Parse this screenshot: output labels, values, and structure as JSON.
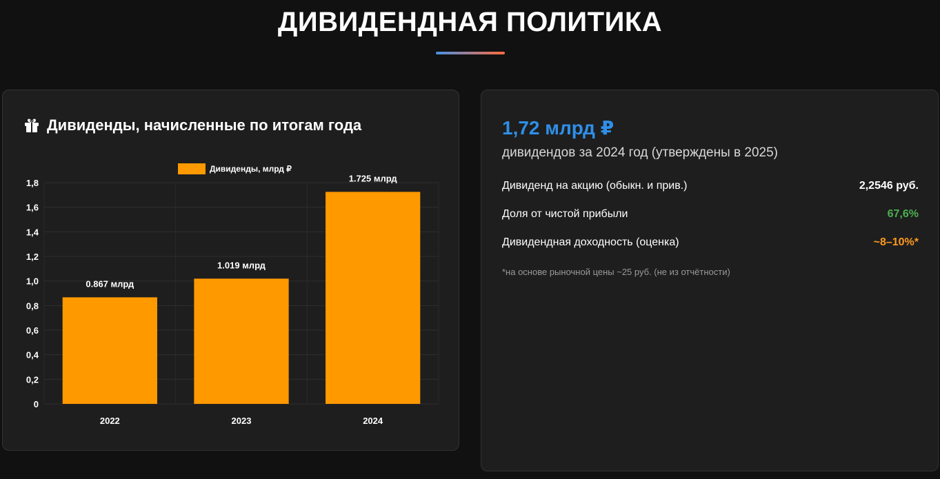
{
  "header": {
    "title": "ДИВИДЕНДНАЯ ПОЛИТИКА"
  },
  "chart_card": {
    "title": "Дивиденды, начисленные по итогам года",
    "icon": "gift-icon"
  },
  "chart_data": {
    "type": "bar",
    "categories": [
      "2022",
      "2023",
      "2024"
    ],
    "series": [
      {
        "name": "Дивиденды, млрд ₽",
        "values": [
          0.867,
          1.019,
          1.725
        ],
        "data_labels": [
          "0.867 млрд",
          "1.019 млрд",
          "1.725 млрд"
        ],
        "color": "#ff9900"
      }
    ],
    "ylim": [
      0,
      1.8
    ],
    "yticks": [
      "0",
      "0,2",
      "0,4",
      "0,6",
      "0,8",
      "1,0",
      "1,2",
      "1,4",
      "1,6",
      "1,8"
    ],
    "grid": true,
    "legend": "top-center"
  },
  "stats_card": {
    "total": "1,72 млрд ₽",
    "subtitle": "дивидендов за 2024 год (утверждены в 2025)",
    "rows": [
      {
        "label": "Дивиденд на акцию (обыкн. и прив.)",
        "value": "2,2546 руб.",
        "color": "#ffffff"
      },
      {
        "label": "Доля от чистой прибыли",
        "value": "67,6%",
        "color": "#4caf50"
      },
      {
        "label": "Дивидендная доходность (оценка)",
        "value": "~8–10%*",
        "color": "#ff9a1f"
      }
    ],
    "footnote": "*на основе рыночной цены ~25 руб. (не из отчётности)"
  }
}
